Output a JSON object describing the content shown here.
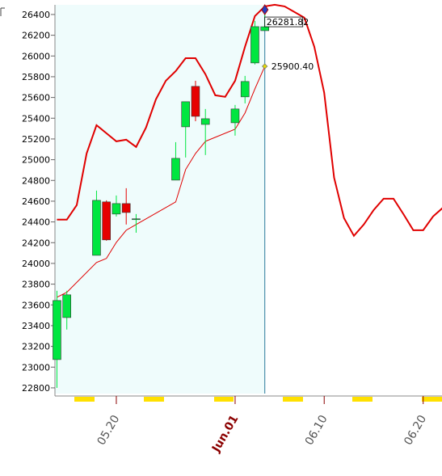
{
  "chart_data": {
    "type": "candlestick",
    "x": [
      14,
      15,
      18,
      19,
      20,
      21,
      22,
      26,
      27,
      28,
      29,
      32,
      33,
      34,
      35
    ],
    "open": [
      23073,
      23478,
      24078,
      24593,
      24476,
      24577,
      24430,
      24803,
      25317,
      25707,
      25340,
      25356,
      25606,
      25933,
      26244
    ],
    "high": [
      23736,
      23736,
      24702,
      24608,
      24655,
      24725,
      24476,
      25169,
      25559,
      25761,
      25489,
      25528,
      25808,
      26338,
      26400
    ],
    "low": [
      22800,
      23362,
      24078,
      24219,
      24452,
      24375,
      24296,
      24803,
      25021,
      25371,
      25045,
      25232,
      25543,
      25918,
      26244
    ],
    "close": [
      23642,
      23697,
      24608,
      24227,
      24577,
      24491,
      24430,
      25013,
      25559,
      25418,
      25395,
      25489,
      25754,
      26283,
      26281.82
    ],
    "up_color": "#00e640",
    "down_color": "#e60000",
    "lines": [
      {
        "color": "#e00000",
        "width": 2,
        "x": [
          14,
          15,
          16,
          17,
          18,
          19,
          20,
          21,
          22,
          23,
          24,
          25,
          26,
          27,
          28,
          29,
          30,
          31,
          32,
          33,
          34,
          35,
          36,
          37,
          38,
          39,
          40,
          41,
          42,
          43,
          44,
          45,
          46,
          47,
          48,
          49,
          50,
          51,
          52,
          53
        ],
        "values": [
          24422,
          24422,
          24562,
          25060,
          25333,
          25255,
          25177,
          25193,
          25123,
          25310,
          25582,
          25761,
          25854,
          25979,
          25979,
          25824,
          25621,
          25606,
          25761,
          26089,
          26385,
          26478,
          26494,
          26478,
          26424,
          26369,
          26089,
          25645,
          24827,
          24437,
          24266,
          24375,
          24515,
          24624,
          24624,
          24476,
          24320,
          24320,
          24453,
          24538
        ]
      },
      {
        "color": "#e00000",
        "width": 1,
        "x": [
          14,
          15,
          18,
          19,
          20,
          21,
          22,
          26,
          27,
          28,
          29,
          32,
          33,
          34,
          35
        ],
        "values": [
          23674,
          23721,
          24009,
          24048,
          24203,
          24320,
          24375,
          24593,
          24905,
          25060,
          25177,
          25294,
          25450,
          25683,
          25900.4
        ]
      }
    ],
    "annotations": [
      {
        "label": "26281.82",
        "value": 26281.82
      },
      {
        "label": "25900.40",
        "value": 25900.4
      }
    ],
    "xlim": [
      13.8,
      52.9
    ],
    "xticks": [
      {
        "value": 20,
        "label": "05.20"
      },
      {
        "value": 32,
        "label": "Jun.01"
      },
      {
        "value": 41,
        "label": "06.10"
      },
      {
        "value": 51,
        "label": "06.20"
      }
    ],
    "ylim": [
      22745,
      26493
    ],
    "yticks": [
      22800,
      23000,
      23200,
      23400,
      23600,
      23800,
      24000,
      24200,
      24400,
      24600,
      24800,
      25000,
      25200,
      25400,
      25600,
      25800,
      26000,
      26200,
      26400
    ]
  }
}
